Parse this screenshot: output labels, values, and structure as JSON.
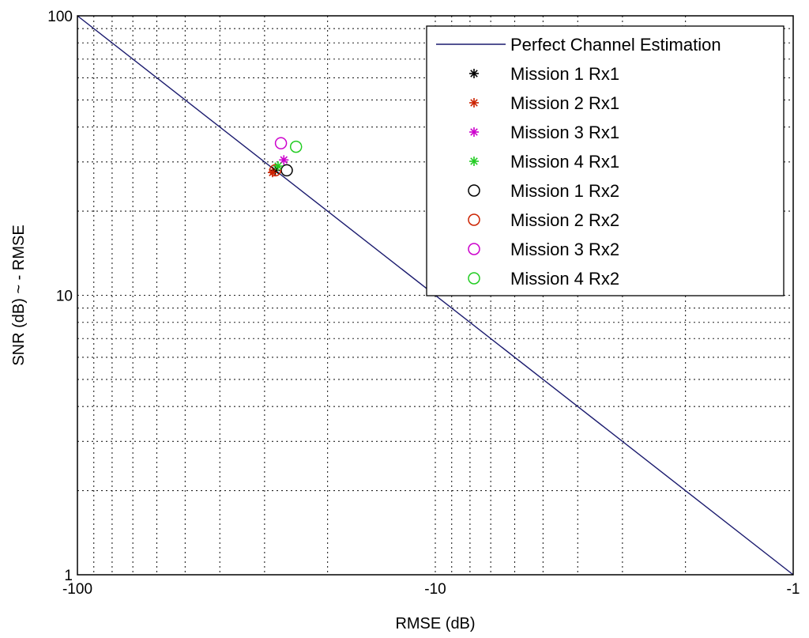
{
  "chart_data": {
    "type": "scatter",
    "title": "",
    "xlabel": "RMSE (dB)",
    "ylabel": "SNR (dB) ~ - RMSE",
    "x_scale": "log",
    "y_scale": "log",
    "xlim": [
      -100,
      -1
    ],
    "ylim": [
      1,
      100
    ],
    "x_ticks": [
      {
        "label": "-100",
        "value": -100
      },
      {
        "label": "-10",
        "value": -10
      },
      {
        "label": "-1",
        "value": -1
      }
    ],
    "y_ticks": [
      {
        "label": "100",
        "value": 100
      },
      {
        "label": "10",
        "value": 10
      },
      {
        "label": "1",
        "value": 1
      }
    ],
    "grid": true,
    "legend_position": "top-right",
    "series": [
      {
        "name": "Perfect Channel Estimation",
        "kind": "line",
        "color": "#1a1a6e",
        "points": [
          {
            "x": -100,
            "y": 100
          },
          {
            "x": -1,
            "y": 1
          }
        ]
      },
      {
        "name": "Mission 1 Rx1",
        "kind": "star",
        "color": "#000000",
        "points": [
          {
            "x": -28.0,
            "y": 28.0
          }
        ]
      },
      {
        "name": "Mission 2 Rx1",
        "kind": "star",
        "color": "#cc2200",
        "points": [
          {
            "x": -28.5,
            "y": 27.5
          }
        ]
      },
      {
        "name": "Mission 3 Rx1",
        "kind": "star",
        "color": "#cc00cc",
        "points": [
          {
            "x": -26.5,
            "y": 30.5
          }
        ]
      },
      {
        "name": "Mission 4 Rx1",
        "kind": "star",
        "color": "#22cc22",
        "points": [
          {
            "x": -27.5,
            "y": 29.0
          }
        ]
      },
      {
        "name": "Mission 1 Rx2",
        "kind": "circle",
        "color": "#000000",
        "points": [
          {
            "x": -26.0,
            "y": 28.0
          }
        ]
      },
      {
        "name": "Mission 2 Rx2",
        "kind": "circle",
        "color": "#cc2200",
        "points": [
          {
            "x": -28.0,
            "y": 28.0
          }
        ]
      },
      {
        "name": "Mission 3 Rx2",
        "kind": "circle",
        "color": "#cc00cc",
        "points": [
          {
            "x": -27.0,
            "y": 35.0
          }
        ]
      },
      {
        "name": "Mission 4 Rx2",
        "kind": "circle",
        "color": "#22cc22",
        "points": [
          {
            "x": -24.5,
            "y": 34.0
          }
        ]
      }
    ]
  }
}
